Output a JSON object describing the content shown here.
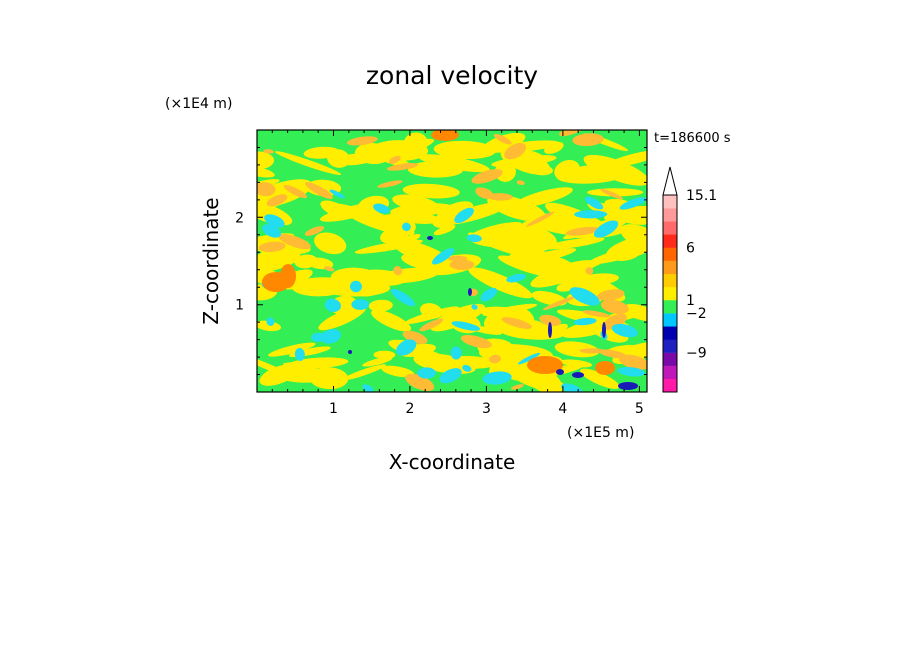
{
  "chart_data": {
    "type": "heatmap",
    "title": "zonal velocity",
    "xlabel": "X-coordinate",
    "ylabel": "Z-coordinate",
    "x_unit": "(×1E5 m)",
    "y_unit": "(×1E4 m)",
    "time_label": "t=186600 s",
    "x_range": [
      0,
      5.1
    ],
    "y_range": [
      0,
      3.0
    ],
    "x_ticks": [
      1,
      2,
      3,
      4,
      5
    ],
    "y_ticks": [
      1,
      2
    ],
    "colorbar": {
      "labels": [
        {
          "value": 15.1,
          "text": "15.1"
        },
        {
          "value": 6,
          "text": "6"
        },
        {
          "value": 1,
          "text": "1"
        },
        {
          "value": -2,
          "text": "−2"
        },
        {
          "value": -9,
          "text": "−9"
        }
      ],
      "colors": [
        "#ff1aa8",
        "#c018b8",
        "#7a0aa8",
        "#2020c0",
        "#0000b0",
        "#00c8ff",
        "#33ee55",
        "#ffee00",
        "#ffcc00",
        "#ff9a1a",
        "#ff6600",
        "#ff2a1a",
        "#ff6a6a",
        "#ff9a9a",
        "#ffc0c0"
      ],
      "extend": "max"
    },
    "field_description_colors": {
      "background": "#33ee55",
      "positive_weak": "#ffee00",
      "positive_mid": "#ffbb33",
      "positive_strong": "#ff8800",
      "negative_weak": "#22ddee",
      "negative_strong": "#1a1ab8"
    }
  }
}
